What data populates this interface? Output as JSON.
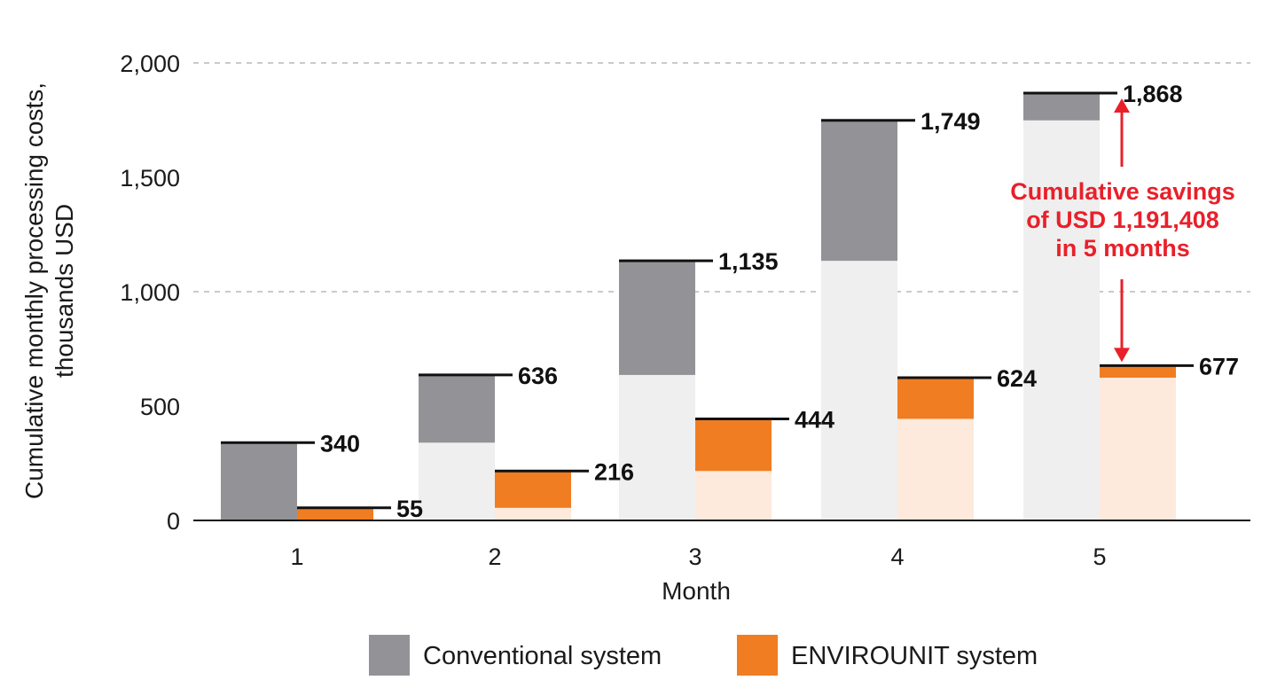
{
  "chart_data": {
    "type": "bar",
    "categories": [
      "1",
      "2",
      "3",
      "4",
      "5"
    ],
    "xlabel": "Month",
    "ylabel_lines": [
      "Cumulative monthly processing costs,",
      "thousands USD"
    ],
    "ylim": [
      0,
      2000
    ],
    "yticks": [
      0,
      500,
      1000,
      1500,
      2000
    ],
    "ytick_labels": [
      "0",
      "500",
      "1,000",
      "1,500",
      "2,000"
    ],
    "grid": "horizontal dashed at 1,000 and 2,000",
    "stacked_cumulative": true,
    "series": [
      {
        "name": "Conventional system",
        "values": [
          340,
          636,
          1135,
          1749,
          1868
        ],
        "labels": [
          "340",
          "636",
          "1,135",
          "1,749",
          "1,868"
        ],
        "color": "#939397",
        "prior_color": "#efefef"
      },
      {
        "name": "ENVIROUNIT system",
        "values": [
          55,
          216,
          444,
          624,
          677
        ],
        "labels": [
          "55",
          "216",
          "444",
          "624",
          "677"
        ],
        "color": "#f07d22",
        "prior_color": "#fdeadc"
      }
    ],
    "annotation": {
      "lines": [
        "Cumulative savings",
        "of USD 1,191,408",
        "in 5 months"
      ],
      "month": "5",
      "from_value": 1868,
      "to_value": 677,
      "color": "#e8202a"
    },
    "legend": {
      "placement": "bottom-center",
      "entries": [
        "Conventional system",
        "ENVIROUNIT system"
      ]
    }
  }
}
